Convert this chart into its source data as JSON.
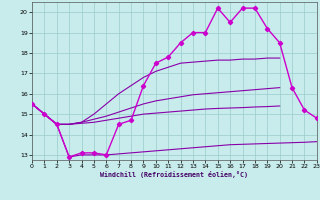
{
  "xlabel": "Windchill (Refroidissement éolien,°C)",
  "background_color": "#c8ecec",
  "grid_color": "#99cccc",
  "line_color_main": "#cc00cc",
  "line_color_fan": "#8800aa",
  "xlim": [
    0,
    23
  ],
  "ylim": [
    12.75,
    20.5
  ],
  "xticks": [
    0,
    1,
    2,
    3,
    4,
    5,
    6,
    7,
    8,
    9,
    10,
    11,
    12,
    13,
    14,
    15,
    16,
    17,
    18,
    19,
    20,
    21,
    22,
    23
  ],
  "yticks": [
    13,
    14,
    15,
    16,
    17,
    18,
    19,
    20
  ],
  "curve_main_x": [
    0,
    1,
    2,
    3,
    4,
    5,
    6,
    7,
    8,
    9,
    10,
    11,
    12,
    13,
    14,
    15,
    16,
    17,
    18,
    19,
    20,
    21,
    22,
    23
  ],
  "curve_main_y": [
    15.5,
    15.0,
    14.5,
    12.9,
    13.1,
    13.1,
    13.0,
    14.5,
    14.7,
    16.4,
    17.5,
    17.8,
    18.5,
    19.0,
    19.0,
    20.2,
    19.5,
    20.2,
    20.2,
    19.2,
    18.5,
    16.3,
    15.2,
    14.8
  ],
  "curve2_x": [
    0,
    1,
    2,
    3,
    4,
    5,
    6,
    7,
    8,
    9,
    10,
    11,
    12,
    13,
    14,
    15,
    16,
    17,
    18,
    19,
    20,
    21,
    22,
    23
  ],
  "curve2_y": [
    15.5,
    15.0,
    14.5,
    14.5,
    14.6,
    15.0,
    15.5,
    16.0,
    16.4,
    16.8,
    17.1,
    17.3,
    17.5,
    17.55,
    17.6,
    17.65,
    17.65,
    17.7,
    17.7,
    17.75,
    17.75,
    null,
    null,
    null
  ],
  "curve3_x": [
    0,
    1,
    2,
    3,
    4,
    5,
    6,
    7,
    8,
    9,
    10,
    11,
    12,
    13,
    14,
    15,
    16,
    17,
    18,
    19,
    20,
    21,
    22,
    23
  ],
  "curve3_y": [
    15.5,
    15.0,
    14.5,
    14.5,
    14.6,
    14.75,
    14.9,
    15.1,
    15.3,
    15.5,
    15.65,
    15.75,
    15.85,
    15.95,
    16.0,
    16.05,
    16.1,
    16.15,
    16.2,
    16.25,
    16.3,
    null,
    null,
    null
  ],
  "curve4_x": [
    0,
    1,
    2,
    3,
    4,
    5,
    6,
    7,
    8,
    9,
    10,
    11,
    12,
    13,
    14,
    15,
    16,
    17,
    18,
    19,
    20,
    21,
    22,
    23
  ],
  "curve4_y": [
    15.5,
    15.0,
    14.5,
    14.5,
    14.55,
    14.6,
    14.7,
    14.8,
    14.9,
    15.0,
    15.05,
    15.1,
    15.15,
    15.2,
    15.25,
    15.28,
    15.3,
    15.32,
    15.35,
    15.37,
    15.4,
    null,
    null,
    null
  ],
  "curve5_x": [
    0,
    1,
    2,
    3,
    4,
    5,
    6,
    7,
    8,
    9,
    10,
    11,
    12,
    13,
    14,
    15,
    16,
    17,
    18,
    19,
    20,
    21,
    22,
    23
  ],
  "curve5_y": [
    15.5,
    15.0,
    14.5,
    12.9,
    13.0,
    13.0,
    13.0,
    13.05,
    13.1,
    13.15,
    13.2,
    13.25,
    13.3,
    13.35,
    13.4,
    13.45,
    13.5,
    13.52,
    13.54,
    13.56,
    13.58,
    13.6,
    13.62,
    13.65
  ]
}
